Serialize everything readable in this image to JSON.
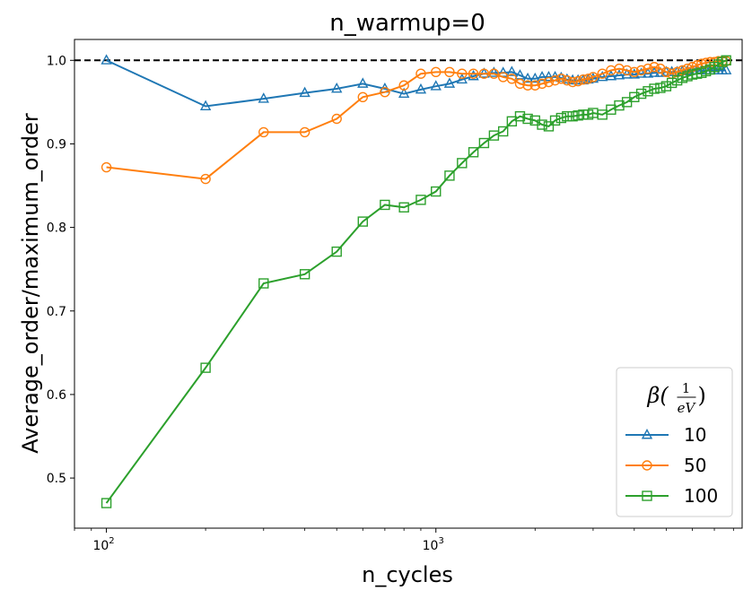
{
  "chart_data": {
    "type": "line",
    "title": "n_warmup=0",
    "xlabel": "n_cycles",
    "ylabel": "Average_order/maximum_order",
    "xscale": "log",
    "xlim": [
      80,
      8500
    ],
    "ylim": [
      0.44,
      1.025
    ],
    "xticks": [
      {
        "value": 100,
        "base": "10",
        "exp": "2"
      },
      {
        "value": 1000,
        "base": "10",
        "exp": "3"
      }
    ],
    "yticks": [
      0.5,
      0.6,
      0.7,
      0.8,
      0.9,
      1.0
    ],
    "ytick_labels": [
      "0.5",
      "0.6",
      "0.7",
      "0.8",
      "0.9",
      "1.0"
    ],
    "reference_line": {
      "y": 1.0,
      "style": "dashed",
      "color": "#000000"
    },
    "legend": {
      "placement": "lower-right",
      "title_symbol": "β",
      "title_num": "1",
      "title_den": "eV"
    },
    "grid": false,
    "series": [
      {
        "name": "10",
        "color": "#1f77b4",
        "marker": "triangle",
        "x": [
          100,
          200,
          300,
          400,
          500,
          600,
          700,
          800,
          900,
          1000,
          1100,
          1200,
          1300,
          1400,
          1500,
          1600,
          1700,
          1800,
          1900,
          2000,
          2100,
          2200,
          2300,
          2400,
          2500,
          2600,
          2700,
          2800,
          2900,
          3000,
          3200,
          3400,
          3600,
          3800,
          4000,
          4200,
          4400,
          4600,
          4800,
          5000,
          5200,
          5400,
          5600,
          5800,
          6000,
          6200,
          6400,
          6600,
          6800,
          7000,
          7200,
          7400,
          7600
        ],
        "y": [
          1.0,
          0.945,
          0.954,
          0.961,
          0.966,
          0.972,
          0.966,
          0.96,
          0.965,
          0.969,
          0.972,
          0.977,
          0.981,
          0.984,
          0.985,
          0.985,
          0.986,
          0.982,
          0.978,
          0.978,
          0.98,
          0.98,
          0.98,
          0.979,
          0.977,
          0.976,
          0.976,
          0.976,
          0.977,
          0.978,
          0.98,
          0.981,
          0.982,
          0.983,
          0.983,
          0.984,
          0.984,
          0.985,
          0.985,
          0.986,
          0.986,
          0.986,
          0.987,
          0.987,
          0.988,
          0.988,
          0.988,
          0.988,
          0.988,
          0.988,
          0.988,
          0.988,
          0.988
        ]
      },
      {
        "name": "50",
        "color": "#ff7f0e",
        "marker": "circle",
        "x": [
          100,
          200,
          300,
          400,
          500,
          600,
          700,
          800,
          900,
          1000,
          1100,
          1200,
          1300,
          1400,
          1500,
          1600,
          1700,
          1800,
          1900,
          2000,
          2100,
          2200,
          2300,
          2400,
          2500,
          2600,
          2700,
          2800,
          2900,
          3000,
          3200,
          3400,
          3600,
          3800,
          4000,
          4200,
          4400,
          4600,
          4800,
          5000,
          5200,
          5400,
          5600,
          5800,
          6000,
          6200,
          6400,
          6600,
          6800,
          7000,
          7200,
          7400,
          7600
        ],
        "y": [
          0.872,
          0.858,
          0.914,
          0.914,
          0.93,
          0.956,
          0.962,
          0.97,
          0.984,
          0.986,
          0.986,
          0.984,
          0.984,
          0.984,
          0.984,
          0.98,
          0.978,
          0.972,
          0.97,
          0.97,
          0.972,
          0.974,
          0.976,
          0.978,
          0.976,
          0.974,
          0.975,
          0.977,
          0.978,
          0.98,
          0.984,
          0.988,
          0.99,
          0.988,
          0.986,
          0.988,
          0.99,
          0.992,
          0.99,
          0.986,
          0.984,
          0.986,
          0.988,
          0.99,
          0.992,
          0.994,
          0.996,
          0.997,
          0.998,
          0.998,
          0.999,
          0.999,
          0.999
        ]
      },
      {
        "name": "100",
        "color": "#2ca02c",
        "marker": "square",
        "x": [
          100,
          200,
          300,
          400,
          500,
          600,
          700,
          800,
          900,
          1000,
          1100,
          1200,
          1300,
          1400,
          1500,
          1600,
          1700,
          1800,
          1900,
          2000,
          2100,
          2200,
          2300,
          2400,
          2500,
          2600,
          2700,
          2800,
          2900,
          3000,
          3200,
          3400,
          3600,
          3800,
          4000,
          4200,
          4400,
          4600,
          4800,
          5000,
          5200,
          5400,
          5600,
          5800,
          6000,
          6200,
          6400,
          6600,
          6800,
          7000,
          7200,
          7400,
          7600
        ],
        "y": [
          0.47,
          0.632,
          0.733,
          0.744,
          0.771,
          0.807,
          0.827,
          0.824,
          0.833,
          0.843,
          0.862,
          0.877,
          0.89,
          0.901,
          0.91,
          0.915,
          0.927,
          0.933,
          0.93,
          0.928,
          0.923,
          0.921,
          0.928,
          0.931,
          0.933,
          0.933,
          0.934,
          0.935,
          0.935,
          0.937,
          0.935,
          0.941,
          0.946,
          0.95,
          0.956,
          0.96,
          0.963,
          0.966,
          0.967,
          0.969,
          0.973,
          0.976,
          0.979,
          0.981,
          0.983,
          0.984,
          0.985,
          0.987,
          0.989,
          0.992,
          0.995,
          0.998,
          1.0
        ]
      }
    ]
  }
}
